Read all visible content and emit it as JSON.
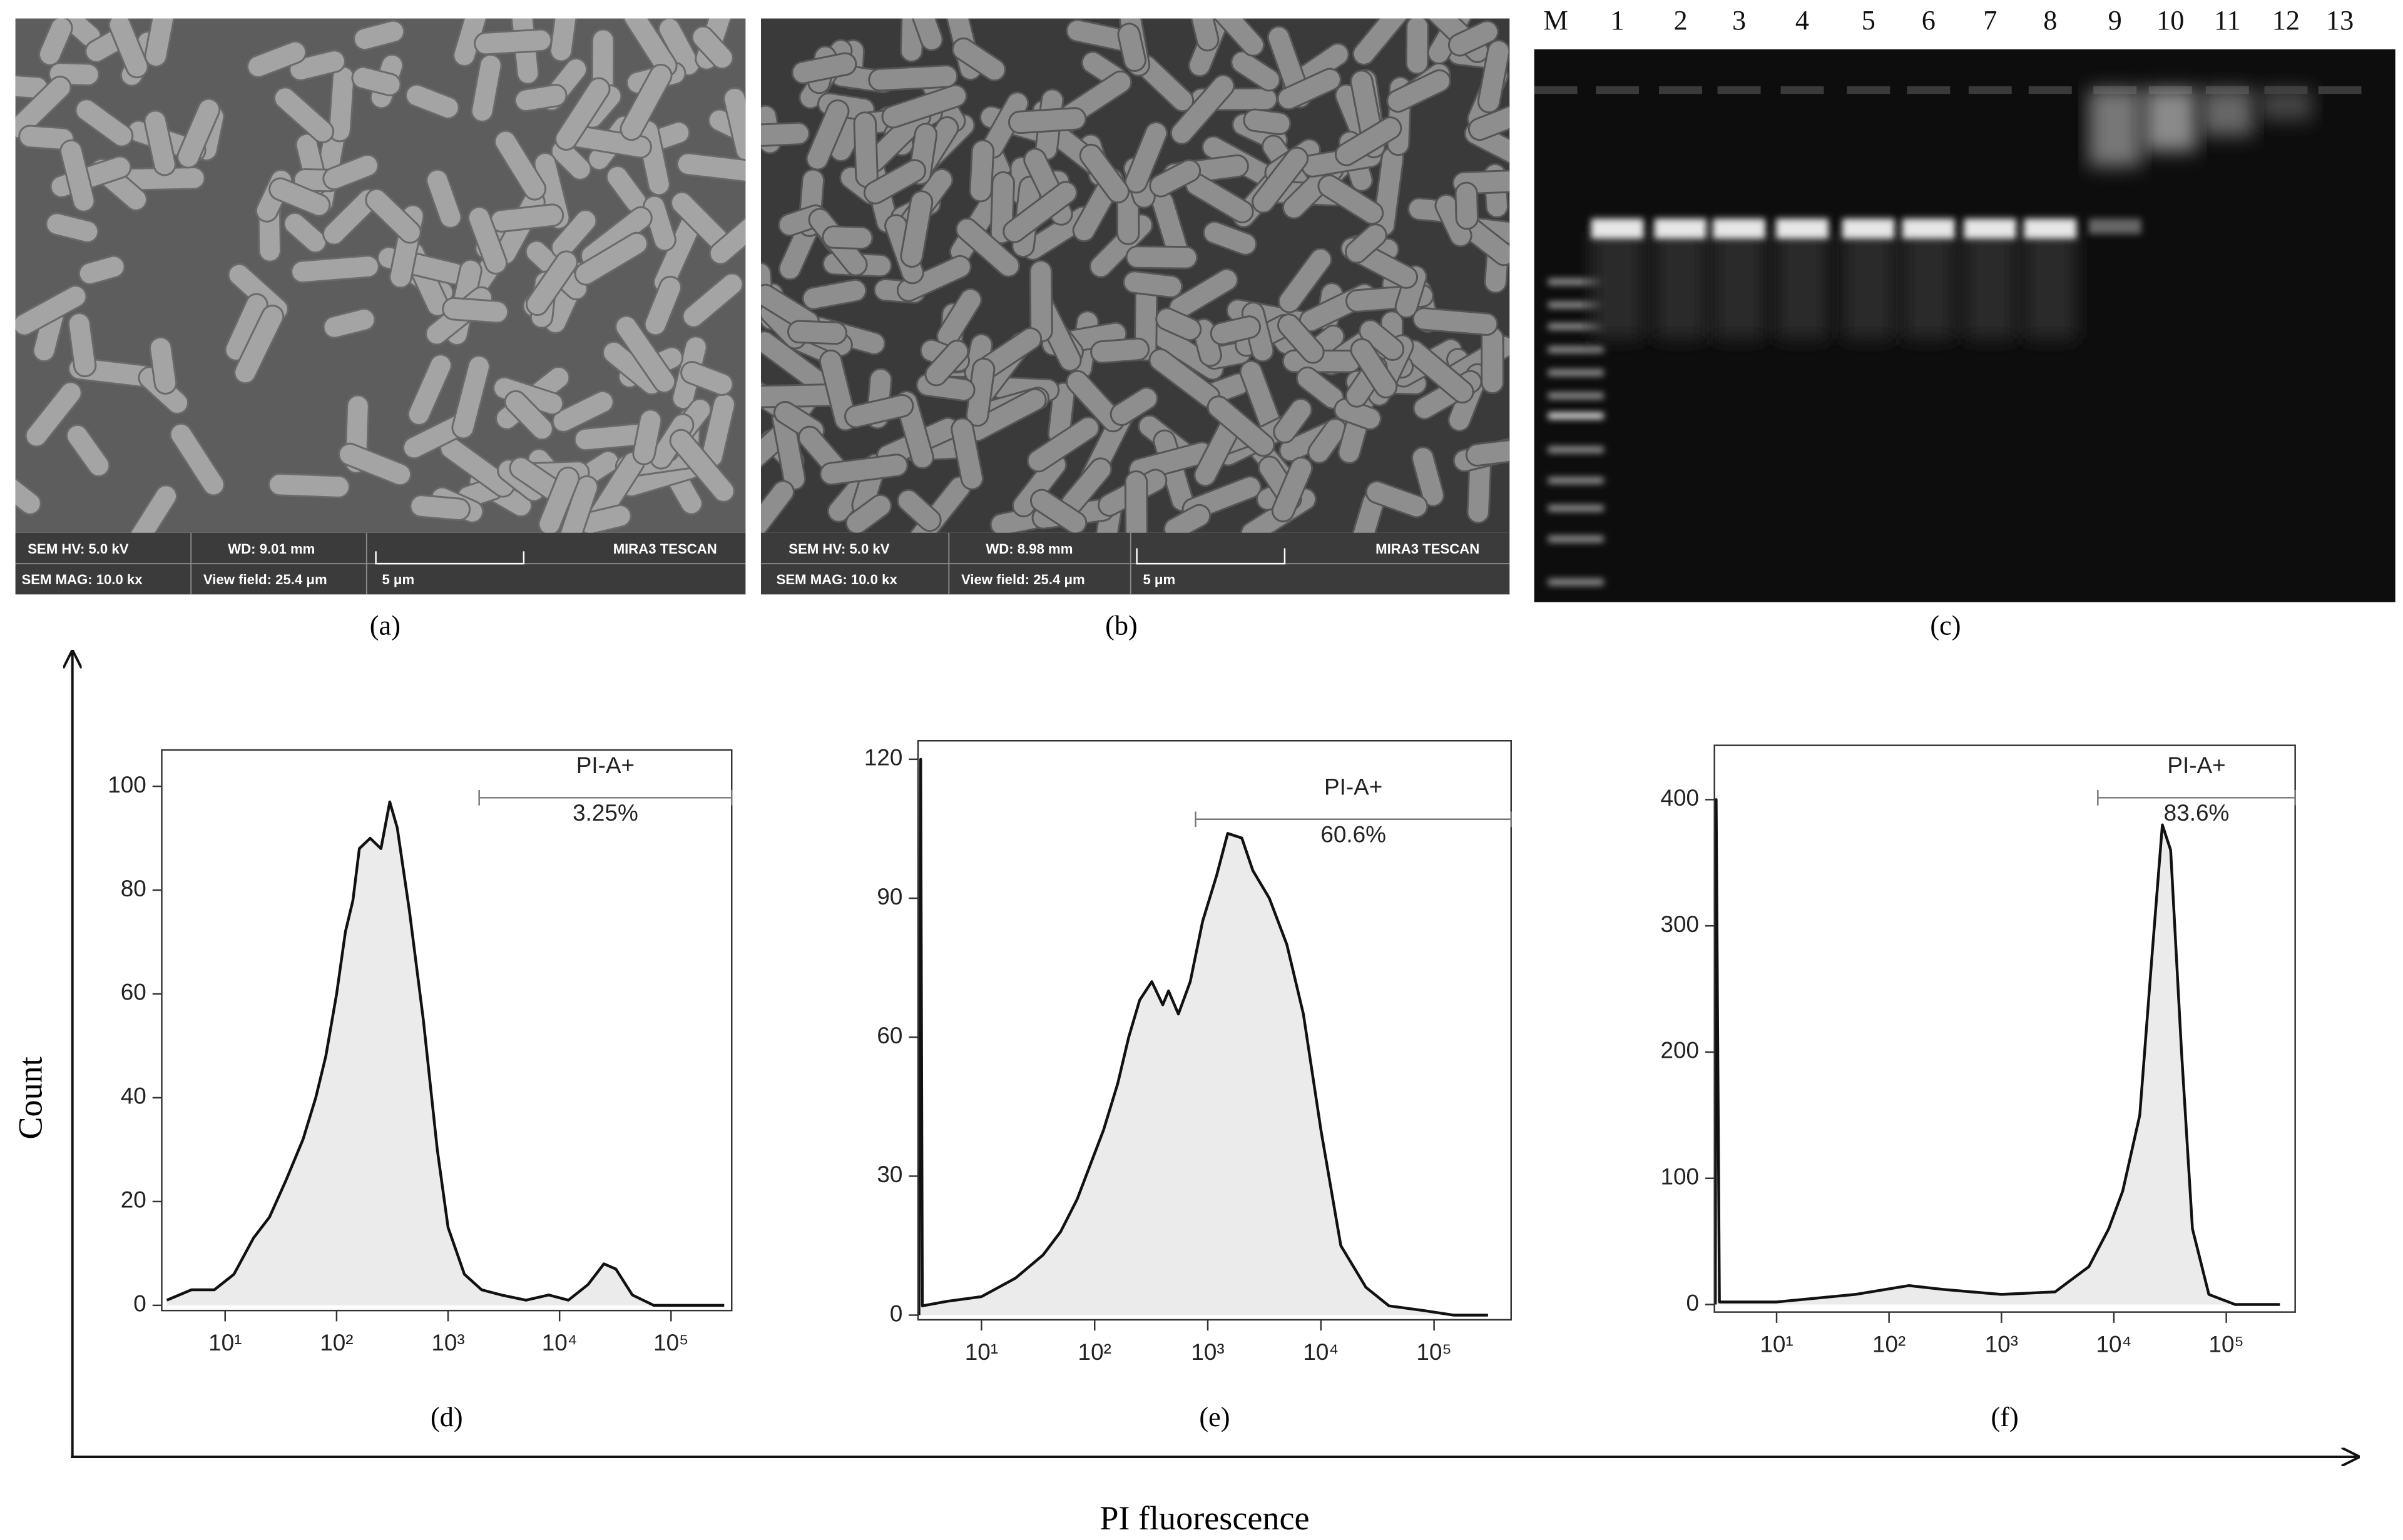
{
  "sem_images": [
    {
      "hv": "SEM HV: 5.0 kV",
      "wd": "WD: 9.01 mm",
      "mag": "SEM MAG: 10.0 kx",
      "view_field": "View field: 25.4 μm",
      "scale": "5 μm",
      "brand": "MIRA3 TESCAN",
      "caption": "(a)"
    },
    {
      "hv": "SEM HV: 5.0 kV",
      "wd": "WD: 8.98 mm",
      "mag": "SEM MAG: 10.0 kx",
      "view_field": "View field: 25.4 μm",
      "scale": "5 μm",
      "brand": "MIRA3 TESCAN",
      "caption": "(b)"
    }
  ],
  "gel": {
    "lanes": [
      "M",
      "1",
      "2",
      "3",
      "4",
      "5",
      "6",
      "7",
      "8",
      "9",
      "10",
      "11",
      "12",
      "13"
    ],
    "caption": "(c)"
  },
  "y_axis_label": "Count",
  "x_axis_label": "PI fluorescence",
  "chart_data": [
    {
      "type": "area",
      "caption": "(d)",
      "log_x": true,
      "color": "#ebebeb",
      "line_color": "#111111",
      "xlim": [
        2.7,
        350000
      ],
      "ylim": [
        -1,
        107
      ],
      "xticks": [
        {
          "value": 10,
          "label": "10¹"
        },
        {
          "value": 100,
          "label": "10²"
        },
        {
          "value": 1000,
          "label": "10³"
        },
        {
          "value": 10000,
          "label": "10⁴"
        },
        {
          "value": 100000,
          "label": "10⁵"
        }
      ],
      "yticks": [
        0,
        20,
        40,
        60,
        80,
        100
      ],
      "x": [
        3,
        5,
        8,
        12,
        18,
        25,
        35,
        50,
        65,
        80,
        100,
        120,
        140,
        160,
        200,
        250,
        300,
        350,
        450,
        600,
        800,
        1000,
        1400,
        2000,
        3000,
        5000,
        8000,
        12000,
        18000,
        25000,
        32000,
        45000,
        70000,
        150000,
        300000
      ],
      "values": [
        1,
        3,
        3,
        6,
        13,
        17,
        24,
        32,
        40,
        48,
        60,
        72,
        78,
        88,
        90,
        88,
        97,
        92,
        76,
        55,
        30,
        15,
        6,
        3,
        2,
        1,
        2,
        1,
        4,
        8,
        7,
        2,
        0,
        0,
        0
      ],
      "gate_name": "PI-A+",
      "gate_text": "3.25%",
      "gate_range": [
        1900,
        350000
      ]
    },
    {
      "type": "area",
      "caption": "(e)",
      "log_x": true,
      "color": "#ebebeb",
      "line_color": "#111111",
      "xlim": [
        2.75,
        480000
      ],
      "ylim": [
        -1,
        124
      ],
      "xticks": [
        {
          "value": 10,
          "label": "10¹"
        },
        {
          "value": 100,
          "label": "10²"
        },
        {
          "value": 1000,
          "label": "10³"
        },
        {
          "value": 10000,
          "label": "10⁴"
        },
        {
          "value": 100000,
          "label": "10⁵"
        }
      ],
      "yticks": [
        0,
        30,
        60,
        90,
        120
      ],
      "x": [
        2.8,
        2.9,
        3.0,
        5,
        10,
        20,
        35,
        50,
        70,
        90,
        120,
        160,
        200,
        250,
        320,
        400,
        450,
        550,
        700,
        900,
        1200,
        1500,
        2000,
        2500,
        3500,
        5000,
        7000,
        10000,
        15000,
        25000,
        40000,
        80000,
        150000,
        300000
      ],
      "values": [
        0,
        120,
        2,
        3,
        4,
        8,
        13,
        18,
        25,
        32,
        40,
        50,
        60,
        68,
        72,
        67,
        70,
        65,
        72,
        85,
        95,
        104,
        103,
        96,
        90,
        80,
        65,
        40,
        15,
        6,
        2,
        1,
        0,
        0
      ],
      "gate_name": "PI-A+",
      "gate_text": "60.6%",
      "gate_range": [
        780,
        480000
      ]
    },
    {
      "type": "area",
      "caption": "(f)",
      "log_x": true,
      "color": "#ebebeb",
      "line_color": "#111111",
      "xlim": [
        2.8,
        410000
      ],
      "ylim": [
        -6,
        443
      ],
      "xticks": [
        {
          "value": 10,
          "label": "10¹"
        },
        {
          "value": 100,
          "label": "10²"
        },
        {
          "value": 1000,
          "label": "10³"
        },
        {
          "value": 10000,
          "label": "10⁴"
        },
        {
          "value": 100000,
          "label": "10⁵"
        }
      ],
      "yticks": [
        0,
        100,
        200,
        300,
        400
      ],
      "x": [
        2.85,
        2.9,
        3.1,
        10,
        50,
        150,
        300,
        1000,
        3000,
        6000,
        9000,
        12000,
        17000,
        22000,
        27000,
        32000,
        40000,
        50000,
        70000,
        120000,
        300000
      ],
      "values": [
        0,
        400,
        2,
        2,
        8,
        15,
        12,
        8,
        10,
        30,
        60,
        90,
        150,
        280,
        380,
        360,
        200,
        60,
        8,
        0,
        0
      ],
      "gate_name": "PI-A+",
      "gate_text": "83.6%",
      "gate_range": [
        7200,
        410000
      ]
    }
  ]
}
